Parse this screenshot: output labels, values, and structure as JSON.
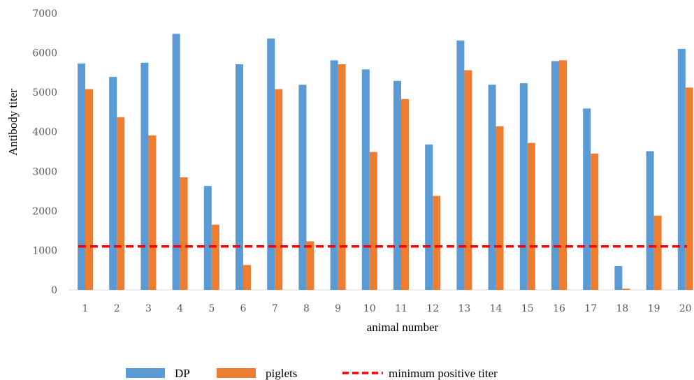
{
  "chart_data": {
    "type": "bar",
    "categories": [
      "1",
      "2",
      "3",
      "4",
      "5",
      "6",
      "7",
      "8",
      "9",
      "10",
      "11",
      "12",
      "13",
      "14",
      "15",
      "16",
      "17",
      "18",
      "19",
      "20"
    ],
    "series": [
      {
        "name": "DP",
        "color": "#5B9BD5",
        "values": [
          5730,
          5390,
          5750,
          6480,
          2630,
          5710,
          6360,
          5190,
          5810,
          5580,
          5290,
          3680,
          6310,
          5190,
          5230,
          5790,
          4590,
          600,
          3510,
          6100
        ]
      },
      {
        "name": "piglets",
        "color": "#ED7D31",
        "values": [
          5080,
          4370,
          3910,
          2850,
          1650,
          630,
          5080,
          1230,
          5710,
          3490,
          4830,
          2380,
          5560,
          4140,
          3720,
          5810,
          3450,
          30,
          1880,
          5120
        ]
      }
    ],
    "reference_line": {
      "name": "minimum positive titer",
      "value": 1100,
      "color": "#FF0000",
      "style": "dashed"
    },
    "xlabel": "animal number",
    "ylabel": "Antibody titer",
    "ylim": [
      0,
      7000
    ],
    "yticks": [
      "0",
      "1000",
      "2000",
      "3000",
      "4000",
      "5000",
      "6000",
      "7000"
    ],
    "grid": false,
    "legend_position": "bottom"
  }
}
